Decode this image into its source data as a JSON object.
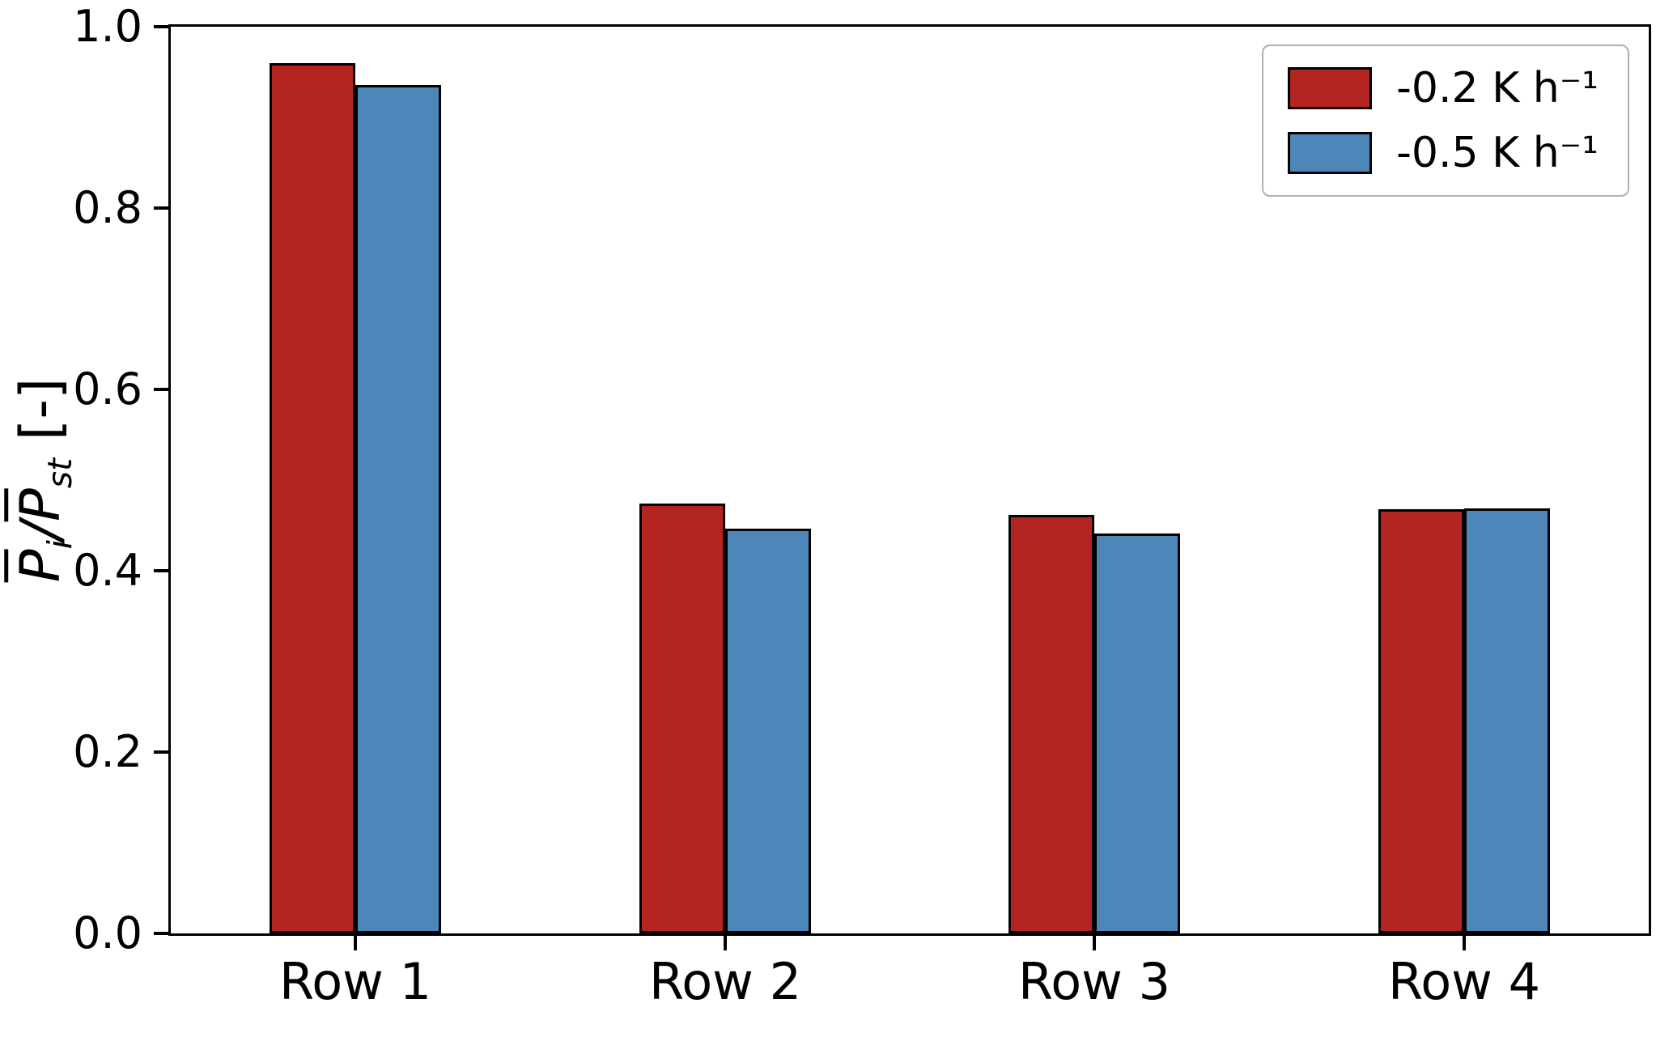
{
  "chart_data": {
    "type": "bar",
    "title": "",
    "categories": [
      "Row 1",
      "Row 2",
      "Row 3",
      "Row 4"
    ],
    "series": [
      {
        "name": "-0.2 K h⁻¹",
        "color": "#b42521",
        "values": [
          0.96,
          0.474,
          0.462,
          0.468
        ]
      },
      {
        "name": "-0.5 K h⁻¹",
        "color": "#4d87ba",
        "values": [
          0.936,
          0.446,
          0.441,
          0.469
        ]
      }
    ],
    "xlabel": "",
    "ylabel_text": "P̄i/P̄st [-]",
    "ylabel_parts": {
      "p1": "P",
      "sub1": "i",
      "slash": "/",
      "p2": "P",
      "sub2": "st",
      "units": " [-]"
    },
    "ylim": [
      0.0,
      1.0
    ],
    "yticks": [
      "0.0",
      "0.2",
      "0.4",
      "0.6",
      "0.8",
      "1.0"
    ],
    "legend_position": "upper right",
    "grid": false,
    "bar_edge_color": "#000000"
  }
}
